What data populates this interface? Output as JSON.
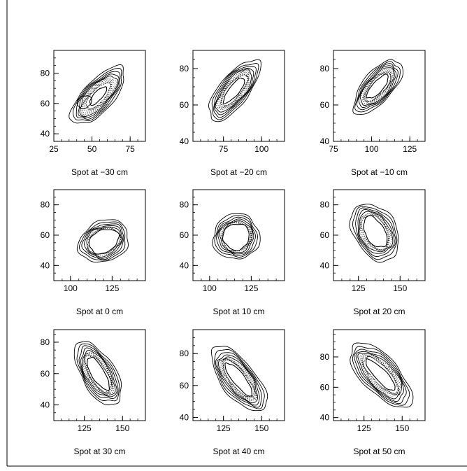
{
  "chart_data": [
    {
      "type": "contour",
      "caption": "Spot at −30 cm",
      "xlim": [
        25,
        85
      ],
      "ylim": [
        35,
        95
      ],
      "xticks": [
        {
          "v": 25,
          "label": "25"
        },
        {
          "v": 50,
          "label": "50"
        },
        {
          "v": 75,
          "label": "75"
        }
      ],
      "yticks": [
        {
          "v": 40,
          "label": "40"
        },
        {
          "v": 60,
          "label": "60"
        },
        {
          "v": 80,
          "label": "80"
        }
      ],
      "center": [
        54,
        65
      ],
      "semi_axes": [
        24,
        10
      ],
      "angle_deg": 48,
      "core": [
        0.32,
        0.28
      ],
      "hole": {
        "center": [
          45,
          61
        ],
        "semi_axes": [
          5,
          4
        ],
        "angle_deg": 30
      }
    },
    {
      "type": "contour",
      "caption": "Spot at −20 cm",
      "xlim": [
        55,
        115
      ],
      "ylim": [
        40,
        90
      ],
      "xticks": [
        {
          "v": 75,
          "label": "75"
        },
        {
          "v": 100,
          "label": "100"
        }
      ],
      "yticks": [
        {
          "v": 40,
          "label": "40"
        },
        {
          "v": 60,
          "label": "60"
        },
        {
          "v": 80,
          "label": "80"
        }
      ],
      "center": [
        82,
        68
      ],
      "semi_axes": [
        22,
        9
      ],
      "angle_deg": 45,
      "core": [
        0.42,
        0.34
      ]
    },
    {
      "type": "contour",
      "caption": "Spot at −10 cm",
      "xlim": [
        75,
        135
      ],
      "ylim": [
        40,
        90
      ],
      "xticks": [
        {
          "v": 75,
          "label": "75"
        },
        {
          "v": 100,
          "label": "100"
        },
        {
          "v": 125,
          "label": "125"
        }
      ],
      "yticks": [
        {
          "v": 40,
          "label": "40"
        },
        {
          "v": 60,
          "label": "60"
        },
        {
          "v": 80,
          "label": "80"
        }
      ],
      "center": [
        104,
        70
      ],
      "semi_axes": [
        20,
        9
      ],
      "angle_deg": 42,
      "core": [
        0.45,
        0.36
      ]
    },
    {
      "type": "contour",
      "caption": "Spot at 0 cm",
      "xlim": [
        90,
        145
      ],
      "ylim": [
        30,
        90
      ],
      "xticks": [
        {
          "v": 100,
          "label": "100"
        },
        {
          "v": 125,
          "label": "125"
        }
      ],
      "yticks": [
        {
          "v": 40,
          "label": "40"
        },
        {
          "v": 60,
          "label": "60"
        },
        {
          "v": 80,
          "label": "80"
        }
      ],
      "center": [
        120,
        56
      ],
      "semi_axes": [
        16,
        13
      ],
      "angle_deg": 35,
      "core": [
        0.6,
        0.55
      ]
    },
    {
      "type": "contour",
      "caption": "Spot at 10 cm",
      "xlim": [
        90,
        145
      ],
      "ylim": [
        30,
        90
      ],
      "xticks": [
        {
          "v": 100,
          "label": "100"
        },
        {
          "v": 125,
          "label": "125"
        }
      ],
      "yticks": [
        {
          "v": 40,
          "label": "40"
        },
        {
          "v": 60,
          "label": "60"
        },
        {
          "v": 80,
          "label": "80"
        }
      ],
      "center": [
        116,
        59
      ],
      "semi_axes": [
        15,
        14
      ],
      "angle_deg": 80,
      "core": [
        0.58,
        0.56
      ]
    },
    {
      "type": "contour",
      "caption": "Spot at 20 cm",
      "xlim": [
        110,
        165
      ],
      "ylim": [
        30,
        90
      ],
      "xticks": [
        {
          "v": 125,
          "label": "125"
        },
        {
          "v": 150,
          "label": "150"
        }
      ],
      "yticks": [
        {
          "v": 40,
          "label": "40"
        },
        {
          "v": 60,
          "label": "60"
        },
        {
          "v": 80,
          "label": "80"
        }
      ],
      "center": [
        135,
        62
      ],
      "semi_axes": [
        20,
        13
      ],
      "angle_deg": -65,
      "core": [
        0.55,
        0.45
      ]
    },
    {
      "type": "contour",
      "caption": "Spot at 30 cm",
      "xlim": [
        105,
        165
      ],
      "ylim": [
        30,
        88
      ],
      "xticks": [
        {
          "v": 125,
          "label": "125"
        },
        {
          "v": 150,
          "label": "150"
        }
      ],
      "yticks": [
        {
          "v": 40,
          "label": "40"
        },
        {
          "v": 60,
          "label": "60"
        },
        {
          "v": 80,
          "label": "80"
        }
      ],
      "center": [
        134,
        60
      ],
      "semi_axes": [
        23,
        11
      ],
      "angle_deg": -58,
      "core": [
        0.52,
        0.38
      ]
    },
    {
      "type": "contour",
      "caption": "Spot at 40 cm",
      "xlim": [
        105,
        165
      ],
      "ylim": [
        38,
        95
      ],
      "xticks": [
        {
          "v": 125,
          "label": "125"
        },
        {
          "v": 150,
          "label": "150"
        }
      ],
      "yticks": [
        {
          "v": 40,
          "label": "40"
        },
        {
          "v": 60,
          "label": "60"
        },
        {
          "v": 80,
          "label": "80"
        }
      ],
      "center": [
        135,
        64
      ],
      "semi_axes": [
        25,
        11
      ],
      "angle_deg": -50,
      "core": [
        0.52,
        0.35
      ]
    },
    {
      "type": "contour",
      "caption": "Spot at 50 cm",
      "xlim": [
        105,
        165
      ],
      "ylim": [
        38,
        98
      ],
      "xticks": [
        {
          "v": 125,
          "label": "125"
        },
        {
          "v": 150,
          "label": "150"
        }
      ],
      "yticks": [
        {
          "v": 40,
          "label": "40"
        },
        {
          "v": 60,
          "label": "60"
        },
        {
          "v": 80,
          "label": "80"
        }
      ],
      "center": [
        136,
        68
      ],
      "semi_axes": [
        27,
        12
      ],
      "angle_deg": -47,
      "core": [
        0.5,
        0.32
      ]
    }
  ]
}
